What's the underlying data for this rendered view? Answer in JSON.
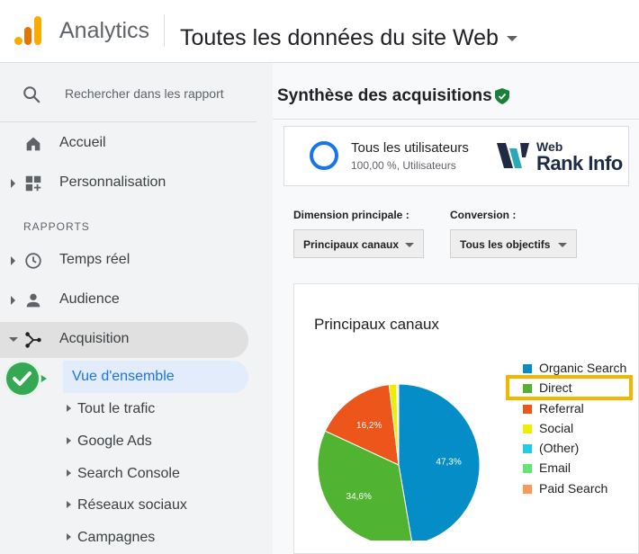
{
  "header": {
    "app_title": "Analytics",
    "account_title": "Toutes les données du site Web"
  },
  "sidebar": {
    "search_placeholder": "Rechercher dans les rapport",
    "items": [
      {
        "label": "Accueil",
        "icon": "home-icon"
      },
      {
        "label": "Personnalisation",
        "icon": "dashboard-icon"
      }
    ],
    "section_label": "RAPPORTS",
    "reports": [
      {
        "label": "Temps réel",
        "icon": "clock-icon"
      },
      {
        "label": "Audience",
        "icon": "person-icon"
      },
      {
        "label": "Acquisition",
        "icon": "acquisition-icon"
      }
    ],
    "acquisition_children": [
      {
        "label": "Vue d'ensemble",
        "selected": true
      },
      {
        "label": "Tout le trafic"
      },
      {
        "label": "Google Ads"
      },
      {
        "label": "Search Console"
      },
      {
        "label": "Réseaux sociaux"
      },
      {
        "label": "Campagnes"
      }
    ]
  },
  "main": {
    "page_title": "Synthèse des acquisitions",
    "segment": {
      "title": "Tous les utilisateurs",
      "subtitle": "100,00 %, Utilisateurs"
    },
    "brand": {
      "line1": "Web",
      "line2": "Rank Info"
    },
    "primary_dimension": {
      "label": "Dimension principale :",
      "value": "Principaux canaux"
    },
    "conversion": {
      "label": "Conversion :",
      "value": "Tous les objectifs"
    }
  },
  "chart_data": {
    "type": "pie",
    "title": "Principaux canaux",
    "legend_position": "right",
    "categories": [
      "Organic Search",
      "Direct",
      "Referral",
      "Social",
      "(Other)",
      "Email",
      "Paid Search"
    ],
    "values": [
      47.3,
      34.6,
      16.2,
      1.5,
      0.2,
      0.1,
      0.1
    ],
    "data_labels": [
      "47,3%",
      "34,6%",
      "16,2%",
      "",
      "",
      "",
      ""
    ],
    "colors": [
      "#058dc7",
      "#50b432",
      "#ed561b",
      "#edef00",
      "#24cbe5",
      "#64e572",
      "#ff9655"
    ],
    "highlighted_category": "Direct"
  }
}
